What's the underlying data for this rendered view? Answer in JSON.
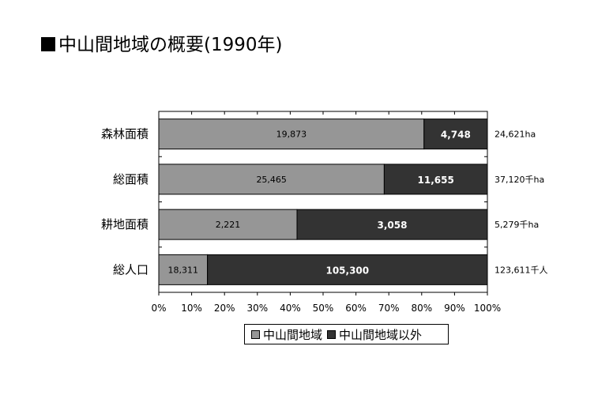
{
  "title": "中山間地域の概要(1990年)",
  "legend": [
    {
      "label": "中山間地域",
      "color": "#969696"
    },
    {
      "label": "中山間地域以外",
      "color": "#333333"
    }
  ],
  "chart_data": {
    "type": "bar",
    "orientation": "horizontal",
    "stacking": "percent",
    "categories": [
      "森林面積",
      "総面積",
      "耕地面積",
      "総人口"
    ],
    "series": [
      {
        "name": "中山間地域",
        "color": "#969696",
        "values": [
          19873,
          25465,
          2221,
          18311
        ],
        "labels": [
          "19,873",
          "25,465",
          "2,221",
          "18,311"
        ]
      },
      {
        "name": "中山間地域以外",
        "color": "#333333",
        "values": [
          4748,
          11655,
          3058,
          105300
        ],
        "labels": [
          "4,748",
          "11,655",
          "3,058",
          "105,300"
        ]
      }
    ],
    "totals": [
      "24,621ha",
      "37,120千ha",
      "5,279千ha",
      "123,611千人"
    ],
    "x_ticks": [
      "0%",
      "10%",
      "20%",
      "30%",
      "40%",
      "50%",
      "60%",
      "70%",
      "80%",
      "90%",
      "100%"
    ],
    "xlim": [
      0,
      100
    ],
    "grid": false
  }
}
